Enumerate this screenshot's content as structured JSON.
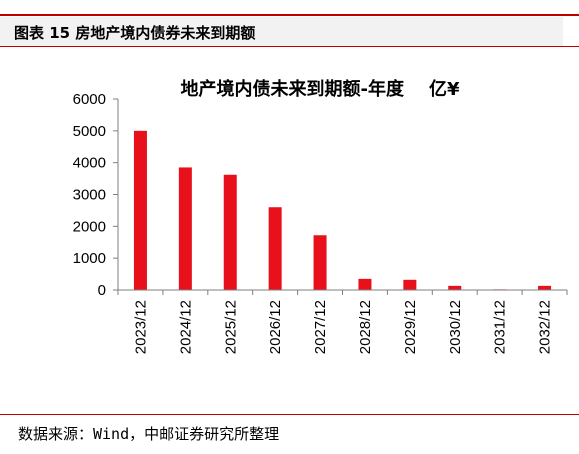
{
  "header": {
    "figure_title": "图表 15  房地产境内债券未来到期额"
  },
  "footer": {
    "source": "数据来源：Wind，中邮证券研究所整理"
  },
  "colors": {
    "accent": "#c00000",
    "bar": "#e8101a",
    "header_bg": "#f2f2f2"
  },
  "chart_data": {
    "type": "bar",
    "title": "地产境内债未来到期额-年度    亿¥",
    "xlabel": "",
    "ylabel": "",
    "categories": [
      "2023/12",
      "2024/12",
      "2025/12",
      "2026/12",
      "2027/12",
      "2028/12",
      "2029/12",
      "2030/12",
      "2031/12",
      "2032/12"
    ],
    "values": [
      5000,
      3850,
      3620,
      2600,
      1720,
      350,
      320,
      130,
      20,
      130
    ],
    "ylim": [
      0,
      6000
    ],
    "yticks": [
      0,
      1000,
      2000,
      3000,
      4000,
      5000,
      6000
    ],
    "grid": false,
    "legend": "none"
  }
}
